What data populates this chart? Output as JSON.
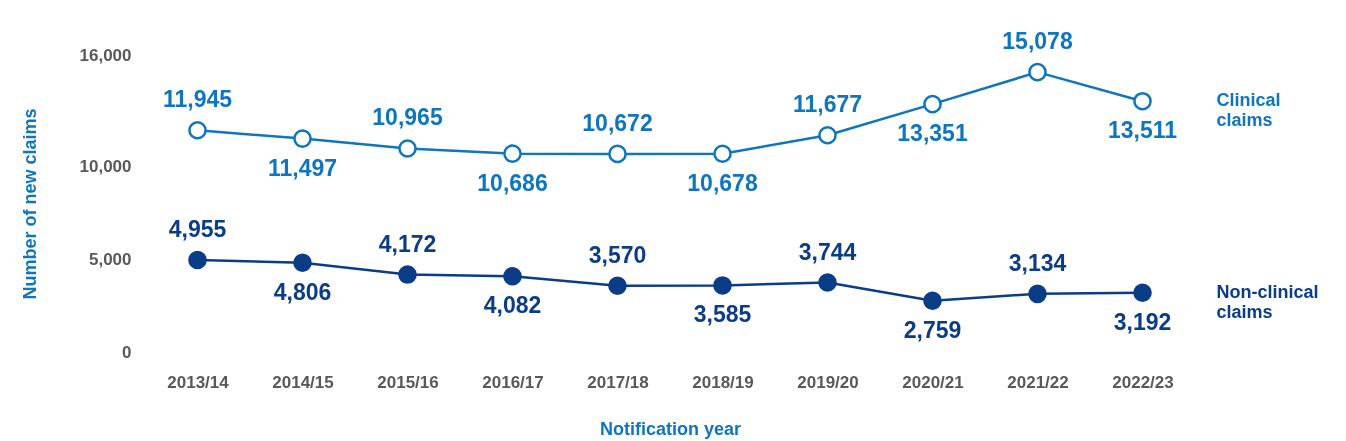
{
  "chart_data": {
    "type": "line",
    "xlabel": "Notification year",
    "ylabel": "Number of new claims",
    "categories": [
      "2013/14",
      "2014/15",
      "2015/16",
      "2016/17",
      "2017/18",
      "2018/19",
      "2019/20",
      "2020/21",
      "2021/22",
      "2022/23"
    ],
    "series": [
      {
        "name": "Clinical claims",
        "color": "#0f75bc",
        "values": [
          11945,
          11497,
          10965,
          10686,
          10672,
          10678,
          11677,
          13351,
          15078,
          13511
        ],
        "value_labels": [
          "11,945",
          "11,497",
          "10,965",
          "10,686",
          "10,672",
          "10,678",
          "11,677",
          "13,351",
          "15,078",
          "13,511"
        ]
      },
      {
        "name": "Non-clinical claims",
        "color": "#0b3d86",
        "values": [
          4955,
          4806,
          4172,
          4082,
          3570,
          3585,
          3744,
          2759,
          3134,
          3192
        ],
        "value_labels": [
          "4,955",
          "4,806",
          "4,172",
          "4,082",
          "3,570",
          "3,585",
          "3,744",
          "2,759",
          "3,134",
          "3,192"
        ]
      }
    ],
    "ylim": [
      0,
      16000
    ],
    "yticks": [
      0,
      {
        "value": 5000,
        "label": "5,000"
      },
      {
        "value": 10000,
        "label": "10,000"
      },
      {
        "value": 16000,
        "label": "16,000"
      }
    ],
    "grid": false,
    "legend": false,
    "marker": "circle"
  }
}
